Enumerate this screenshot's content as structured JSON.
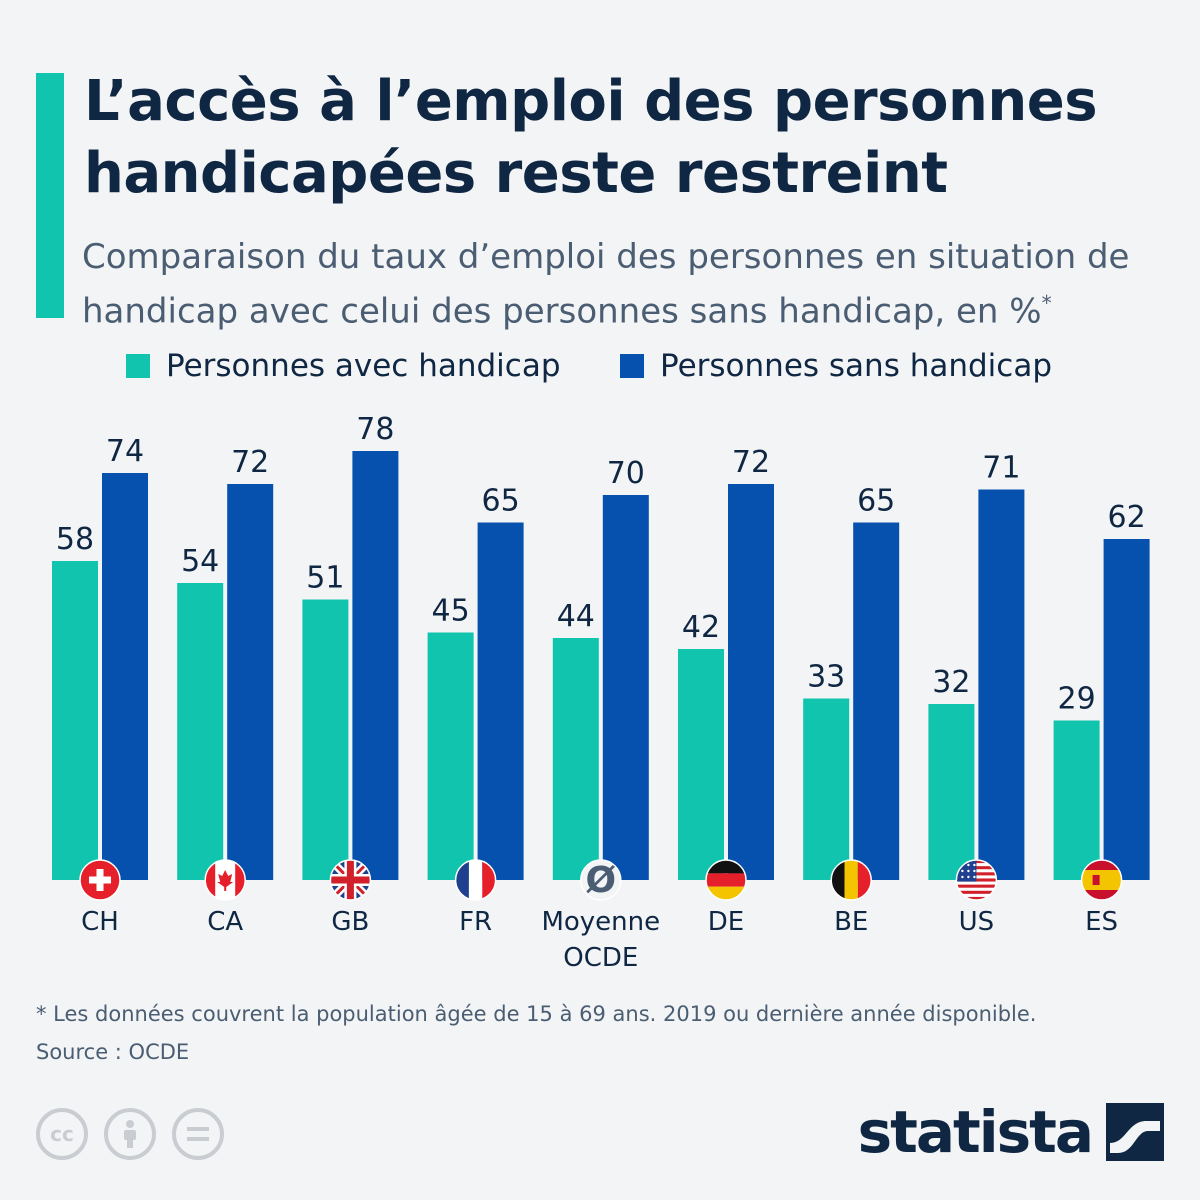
{
  "title": "L’accès à l’emploi des personnes handicapées reste restreint",
  "subtitle": "Comparaison du taux d’emploi des personnes en situation de handicap avec celui des personnes sans handicap, en %",
  "subtitle_mark": "*",
  "legend": [
    {
      "label": "Personnes avec handicap",
      "color": "#10c4ad"
    },
    {
      "label": "Personnes sans handicap",
      "color": "#0651ad"
    }
  ],
  "chart_data": {
    "type": "bar",
    "categories": [
      "CH",
      "CA",
      "GB",
      "FR",
      "Moyenne OCDE",
      "DE",
      "BE",
      "US",
      "ES"
    ],
    "category_icons": [
      "flag-ch-icon",
      "flag-ca-icon",
      "flag-gb-icon",
      "flag-fr-icon",
      "average-symbol-icon",
      "flag-de-icon",
      "flag-be-icon",
      "flag-us-icon",
      "flag-es-icon"
    ],
    "average_symbol": "Ø",
    "series": [
      {
        "name": "Personnes avec handicap",
        "values": [
          58,
          54,
          51,
          45,
          44,
          42,
          33,
          32,
          29
        ],
        "color": "#10c4ad"
      },
      {
        "name": "Personnes sans handicap",
        "values": [
          74,
          72,
          78,
          65,
          70,
          72,
          65,
          71,
          62
        ],
        "color": "#0651ad"
      }
    ],
    "ylim": [
      0,
      100
    ],
    "grid": false,
    "legend_position": "top",
    "data_labels": true
  },
  "footnote": "* Les données couvrent la population âgée de 15 à 69 ans. 2019 ou dernière année disponible.",
  "source": "Source : OCDE",
  "brand": "statista"
}
